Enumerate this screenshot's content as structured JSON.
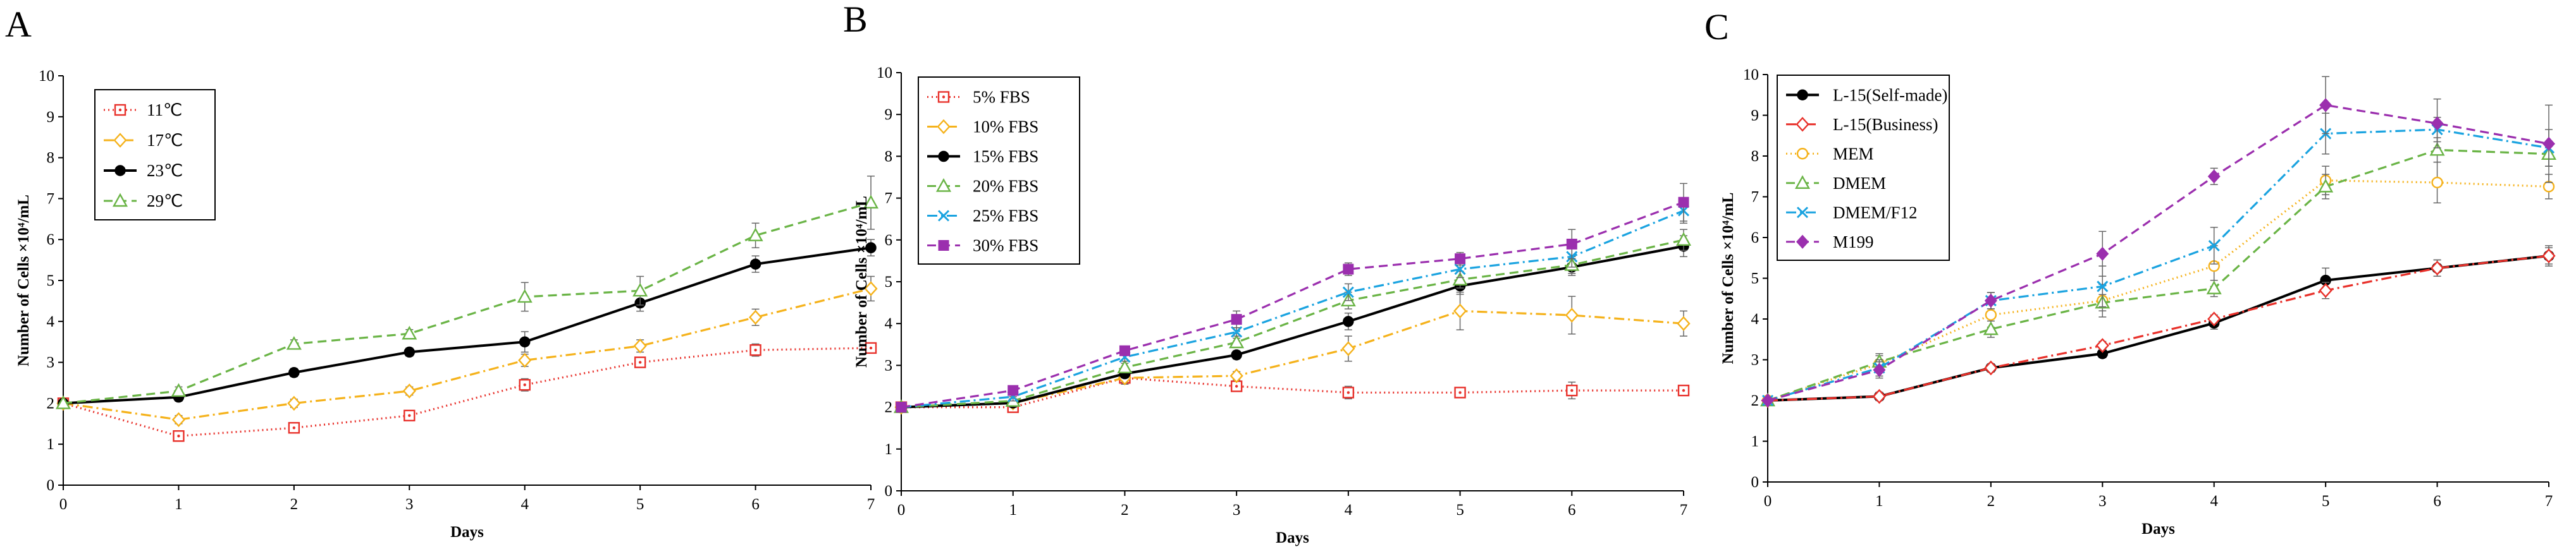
{
  "chart_data": [
    {
      "type": "line",
      "panel": "A",
      "xlabel": "Days",
      "ylabel": "Number of Cells ×10⁴/mL",
      "x": [
        0,
        1,
        2,
        3,
        4,
        5,
        6,
        7
      ],
      "xlim": [
        0,
        7
      ],
      "ylim": [
        0,
        10
      ],
      "xticks": [
        "0",
        "1",
        "2",
        "3",
        "4",
        "5",
        "6",
        "7"
      ],
      "yticks": [
        "0",
        "1",
        "2",
        "3",
        "4",
        "5",
        "6",
        "7",
        "8",
        "9",
        "10"
      ],
      "legend_position": "top-left",
      "series": [
        {
          "name": "11℃",
          "color": "#e8302a",
          "dash": "dotted",
          "marker": "square-dot",
          "values": [
            2.0,
            1.2,
            1.4,
            1.7,
            2.45,
            3.0,
            3.3,
            3.35
          ],
          "errors": [
            0,
            0.1,
            0.1,
            0.1,
            0.15,
            0.1,
            0.15,
            0.1
          ]
        },
        {
          "name": "17℃",
          "color": "#f5b21b",
          "dash": "dashdot",
          "marker": "diamond",
          "values": [
            2.0,
            1.6,
            2.0,
            2.3,
            3.05,
            3.4,
            4.1,
            4.8
          ],
          "errors": [
            0,
            0.1,
            0.1,
            0.1,
            0.15,
            0.15,
            0.2,
            0.3
          ]
        },
        {
          "name": "23℃",
          "color": "#000000",
          "dash": "solid",
          "marker": "circle",
          "values": [
            2.0,
            2.15,
            2.75,
            3.25,
            3.5,
            4.45,
            5.4,
            5.8
          ],
          "errors": [
            0,
            0.1,
            0.1,
            0.1,
            0.25,
            0.2,
            0.2,
            0.2
          ]
        },
        {
          "name": "29℃",
          "color": "#6ab446",
          "dash": "dashed",
          "marker": "triangle",
          "values": [
            2.0,
            2.3,
            3.45,
            3.7,
            4.6,
            4.75,
            6.1,
            6.9
          ],
          "errors": [
            0,
            0.1,
            0.1,
            0.1,
            0.35,
            0.35,
            0.3,
            0.65
          ]
        }
      ]
    },
    {
      "type": "line",
      "panel": "B",
      "xlabel": "Days",
      "ylabel": "Number of Cells ×10⁴/mL",
      "x": [
        0,
        1,
        2,
        3,
        4,
        5,
        6,
        7
      ],
      "xlim": [
        0,
        7
      ],
      "ylim": [
        0,
        10
      ],
      "xticks": [
        "0",
        "1",
        "2",
        "3",
        "4",
        "5",
        "6",
        "7"
      ],
      "yticks": [
        "0",
        "1",
        "2",
        "3",
        "4",
        "5",
        "6",
        "7",
        "8",
        "9",
        "10"
      ],
      "legend_position": "top-left",
      "series": [
        {
          "name": "5% FBS",
          "color": "#e8302a",
          "dash": "dotted",
          "marker": "square-dot",
          "values": [
            2.0,
            2.0,
            2.7,
            2.5,
            2.35,
            2.35,
            2.4,
            2.4
          ],
          "errors": [
            0,
            0.1,
            0.15,
            0.1,
            0.15,
            0.1,
            0.2,
            0.1
          ]
        },
        {
          "name": "10% FBS",
          "color": "#f5b21b",
          "dash": "dashdot",
          "marker": "diamond",
          "values": [
            2.0,
            2.1,
            2.7,
            2.75,
            3.4,
            4.3,
            4.2,
            4.0
          ],
          "errors": [
            0,
            0.1,
            0.1,
            0.1,
            0.3,
            0.45,
            0.45,
            0.3
          ]
        },
        {
          "name": "15% FBS",
          "color": "#000000",
          "dash": "solid",
          "marker": "circle",
          "values": [
            2.0,
            2.1,
            2.8,
            3.25,
            4.05,
            4.9,
            5.35,
            5.85
          ],
          "errors": [
            0,
            0.1,
            0.1,
            0.1,
            0.2,
            0.2,
            0.2,
            0.25
          ]
        },
        {
          "name": "20% FBS",
          "color": "#6ab446",
          "dash": "dashed",
          "marker": "triangle",
          "values": [
            2.0,
            2.15,
            2.95,
            3.55,
            4.55,
            5.05,
            5.4,
            6.0
          ],
          "errors": [
            0,
            0.1,
            0.1,
            0.1,
            0.2,
            0.2,
            0.2,
            0.25
          ]
        },
        {
          "name": "25% FBS",
          "color": "#1aa3e0",
          "dash": "dashdot",
          "marker": "x",
          "values": [
            2.0,
            2.25,
            3.2,
            3.8,
            4.75,
            5.3,
            5.6,
            6.7
          ],
          "errors": [
            0,
            0.1,
            0.1,
            0.1,
            0.2,
            0.2,
            0.25,
            0.3
          ]
        },
        {
          "name": "30% FBS",
          "color": "#9b2fae",
          "dash": "dashed",
          "marker": "square",
          "values": [
            2.0,
            2.4,
            3.35,
            4.1,
            5.3,
            5.55,
            5.9,
            6.9
          ],
          "errors": [
            0,
            0.1,
            0.1,
            0.2,
            0.15,
            0.15,
            0.35,
            0.45
          ]
        }
      ]
    },
    {
      "type": "line",
      "panel": "C",
      "xlabel": "Days",
      "ylabel": "Number of Cells ×10⁴/mL",
      "x": [
        0,
        1,
        2,
        3,
        4,
        5,
        6,
        7
      ],
      "xlim": [
        0,
        7
      ],
      "ylim": [
        0,
        10
      ],
      "xticks": [
        "0",
        "1",
        "2",
        "3",
        "4",
        "5",
        "6",
        "7"
      ],
      "yticks": [
        "0",
        "1",
        "2",
        "3",
        "4",
        "5",
        "6",
        "7",
        "8",
        "9",
        "10"
      ],
      "legend_position": "top-left",
      "series": [
        {
          "name": "L-15(Self-made)",
          "color": "#000000",
          "dash": "solid",
          "marker": "circle",
          "values": [
            2.0,
            2.1,
            2.8,
            3.15,
            3.9,
            4.95,
            5.25,
            5.55
          ],
          "errors": [
            0,
            0.1,
            0.1,
            0.1,
            0.15,
            0.3,
            0.2,
            0.25
          ]
        },
        {
          "name": "L-15(Business)",
          "color": "#e8302a",
          "dash": "dashdot",
          "marker": "diamond",
          "values": [
            2.0,
            2.1,
            2.8,
            3.35,
            4.0,
            4.7,
            5.25,
            5.55
          ],
          "errors": [
            0,
            0.1,
            0.1,
            0.1,
            0.1,
            0.2,
            0.2,
            0.2
          ]
        },
        {
          "name": "MEM",
          "color": "#f5b21b",
          "dash": "dotted",
          "marker": "circle-open",
          "values": [
            2.0,
            2.9,
            4.1,
            4.45,
            5.3,
            7.4,
            7.35,
            7.25
          ],
          "errors": [
            0,
            0.2,
            0.3,
            0.4,
            0.5,
            0.35,
            0.5,
            0.3
          ]
        },
        {
          "name": "DMEM",
          "color": "#6ab446",
          "dash": "dashed",
          "marker": "triangle",
          "values": [
            2.0,
            2.95,
            3.75,
            4.4,
            4.75,
            7.25,
            8.15,
            8.05
          ],
          "errors": [
            0,
            0.2,
            0.2,
            0.2,
            0.2,
            0.3,
            0.3,
            0.3
          ]
        },
        {
          "name": "DMEM/F12",
          "color": "#1aa3e0",
          "dash": "dashdot",
          "marker": "x",
          "values": [
            2.0,
            2.8,
            4.45,
            4.8,
            5.8,
            8.55,
            8.65,
            8.2
          ],
          "errors": [
            0,
            0.2,
            0.2,
            0.5,
            0.45,
            0.5,
            0.3,
            0.45
          ]
        },
        {
          "name": "M199",
          "color": "#9b2fae",
          "dash": "dashed",
          "marker": "diamond-filled",
          "values": [
            2.0,
            2.75,
            4.45,
            5.6,
            7.5,
            9.25,
            8.8,
            8.3
          ],
          "errors": [
            0,
            0.2,
            0.2,
            0.55,
            0.2,
            0.7,
            0.6,
            0.95
          ]
        }
      ]
    }
  ]
}
